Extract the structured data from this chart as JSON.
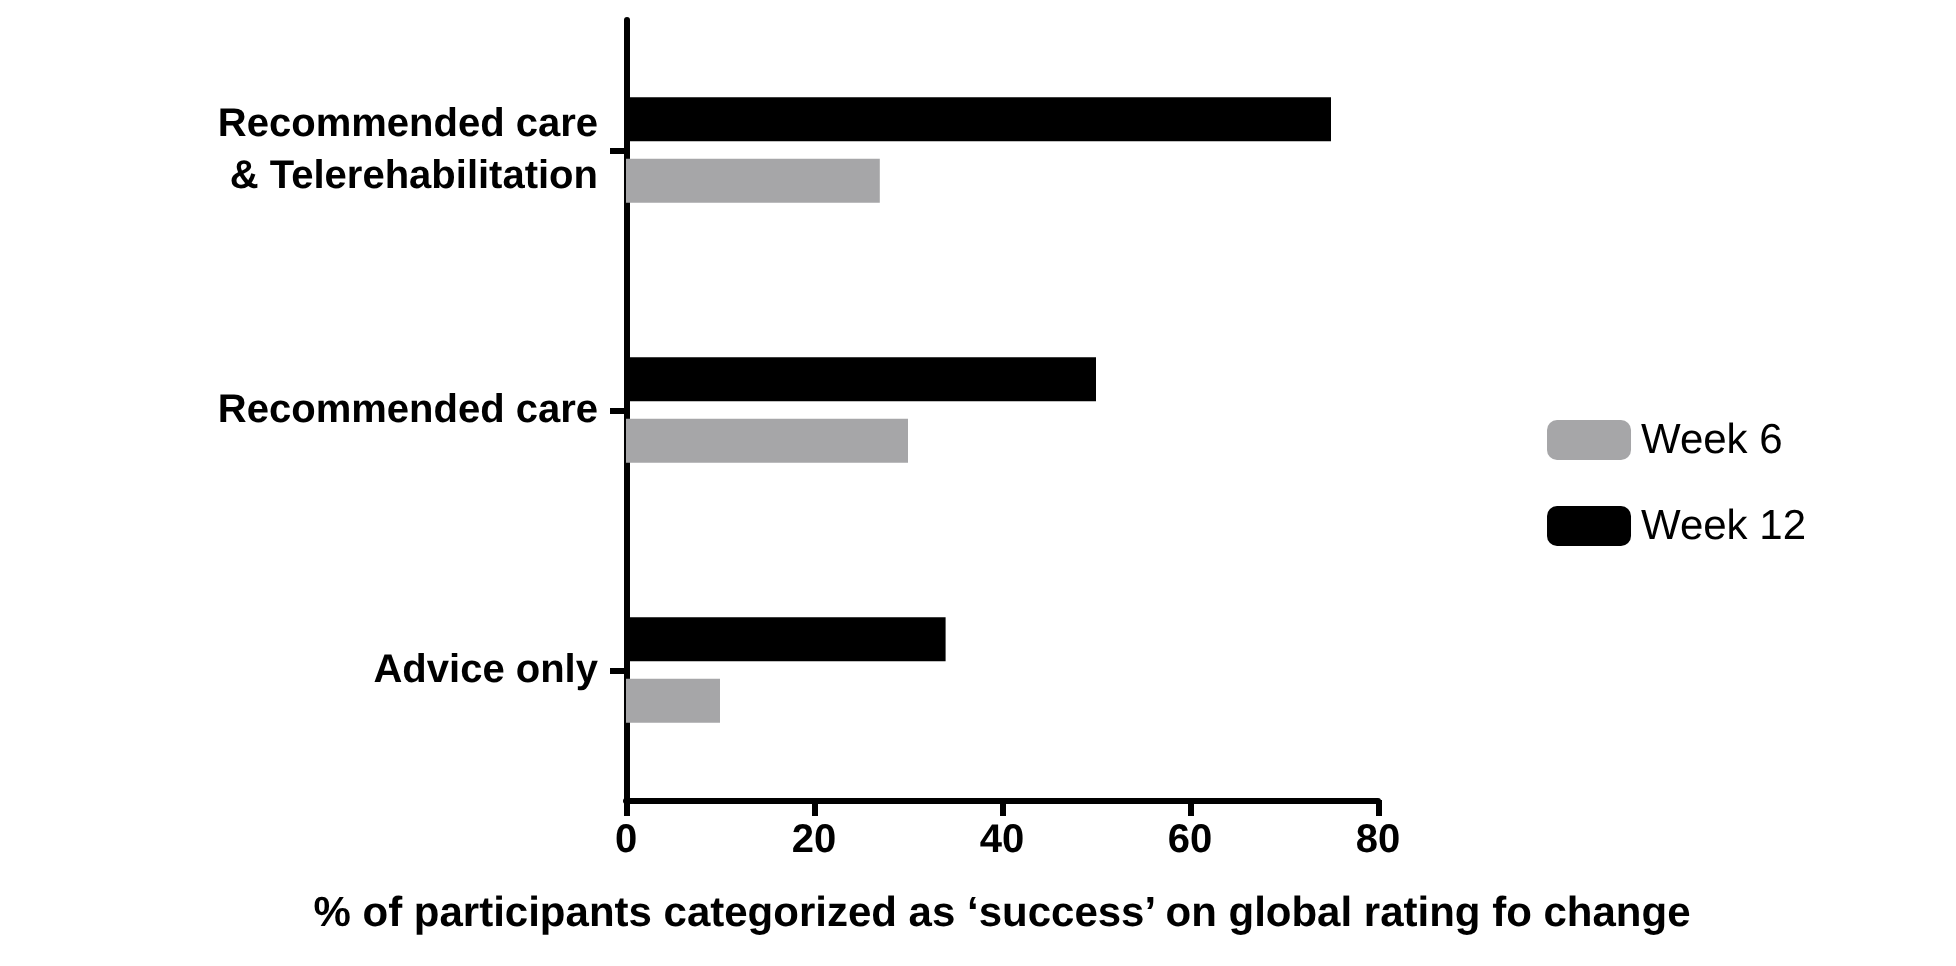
{
  "chart_data": {
    "type": "bar",
    "orientation": "horizontal",
    "xlabel": "% of participants categorized as ‘success’ on global rating fo change",
    "categories": [
      "Recommended care\n& Telerehabilitation",
      "Recommended care",
      "Advice only"
    ],
    "series": [
      {
        "name": "Week 6",
        "color": "#a6a6a8",
        "values": [
          27,
          30,
          10
        ]
      },
      {
        "name": "Week 12",
        "color": "#000000",
        "values": [
          75,
          50,
          34
        ]
      }
    ],
    "xlim": [
      0,
      80
    ],
    "xticks": [
      0,
      20,
      40,
      60,
      80
    ],
    "grid": false,
    "legend": "right"
  }
}
